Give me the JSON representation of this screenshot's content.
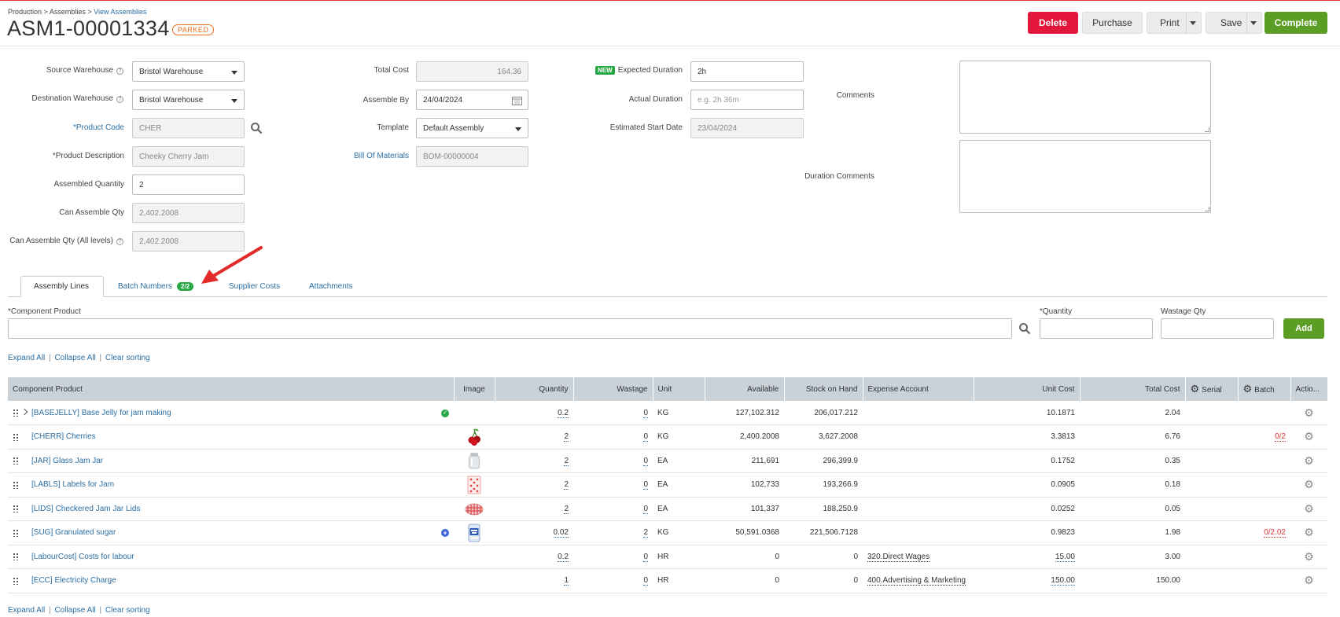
{
  "breadcrumb": {
    "production": "Production",
    "sep": ">",
    "assemblies": "Assemblies",
    "view": "View Assemblies"
  },
  "title": "ASM1-00001334",
  "status": "PARKED",
  "actions": {
    "delete": "Delete",
    "purchase": "Purchase",
    "print": "Print",
    "save": "Save",
    "complete": "Complete"
  },
  "form": {
    "source_warehouse_label": "Source Warehouse",
    "source_warehouse": "Bristol Warehouse",
    "destination_warehouse_label": "Destination Warehouse",
    "destination_warehouse": "Bristol Warehouse",
    "product_code_label": "*Product Code",
    "product_code": "CHER",
    "product_description_label": "*Product Description",
    "product_description": "Cheeky Cherry Jam",
    "assembled_quantity_label": "Assembled Quantity",
    "assembled_quantity": "2",
    "can_assemble_label": "Can Assemble Qty",
    "can_assemble": "2,402.2008",
    "can_assemble_all_label": "Can Assemble Qty (All levels)",
    "can_assemble_all": "2,402.2008",
    "total_cost_label": "Total Cost",
    "total_cost": "164.36",
    "assemble_by_label": "Assemble By",
    "assemble_by": "24/04/2024",
    "template_label": "Template",
    "template": "Default Assembly",
    "bom_label": "Bill Of Materials",
    "bom": "BOM-00000004",
    "new_badge": "NEW",
    "expected_duration_label": "Expected Duration",
    "expected_duration": "2h",
    "actual_duration_label": "Actual Duration",
    "actual_duration_placeholder": "e.g. 2h 36m",
    "est_start_label": "Estimated Start Date",
    "est_start": "23/04/2024",
    "comments_label": "Comments",
    "duration_comments_label": "Duration Comments"
  },
  "tabs": [
    {
      "label": "Assembly Lines"
    },
    {
      "label": "Batch Numbers",
      "badge": "2/2"
    },
    {
      "label": "Supplier Costs"
    },
    {
      "label": "Attachments"
    }
  ],
  "add_line": {
    "component_label": "*Component Product",
    "quantity_label": "*Quantity",
    "wastage_label": "Wastage Qty",
    "add": "Add"
  },
  "links": {
    "expand": "Expand All",
    "sep": "|",
    "collapse": "Collapse All",
    "clear": "Clear sorting"
  },
  "table": {
    "headers": {
      "component": "Component Product",
      "image": "Image",
      "quantity": "Quantity",
      "wastage": "Wastage",
      "unit": "Unit",
      "available": "Available",
      "stock": "Stock on Hand",
      "expense": "Expense Account",
      "unit_cost": "Unit Cost",
      "total_cost": "Total Cost",
      "serial": "Serial",
      "batch": "Batch",
      "actions": "Actio..."
    },
    "rows": [
      {
        "product": "[BASEJELLY] Base Jelly for jam making",
        "quantity": "0.2",
        "wastage": "0",
        "unit": "KG",
        "available": "127,102.312",
        "stock": "206,017.212",
        "expense": "",
        "unit_cost": "10.1871",
        "total_cost": "2.04",
        "batch": ""
      },
      {
        "product": "[CHERR] Cherries",
        "quantity": "2",
        "wastage": "0",
        "unit": "KG",
        "available": "2,400.2008",
        "stock": "3,627.2008",
        "expense": "",
        "unit_cost": "3.3813",
        "total_cost": "6.76",
        "batch": "0/2"
      },
      {
        "product": "[JAR] Glass Jam Jar",
        "quantity": "2",
        "wastage": "0",
        "unit": "EA",
        "available": "211,691",
        "stock": "296,399.9",
        "expense": "",
        "unit_cost": "0.1752",
        "total_cost": "0.35",
        "batch": ""
      },
      {
        "product": "[LABLS] Labels for Jam",
        "quantity": "2",
        "wastage": "0",
        "unit": "EA",
        "available": "102,733",
        "stock": "193,266.9",
        "expense": "",
        "unit_cost": "0.0905",
        "total_cost": "0.18",
        "batch": ""
      },
      {
        "product": "[LIDS] Checkered Jam Jar Lids",
        "quantity": "2",
        "wastage": "0",
        "unit": "EA",
        "available": "101,337",
        "stock": "188,250.9",
        "expense": "",
        "unit_cost": "0.0252",
        "total_cost": "0.05",
        "batch": ""
      },
      {
        "product": "[SUG] Granulated sugar",
        "quantity": "0.02",
        "wastage": "2",
        "unit": "KG",
        "available": "50,591.0368",
        "stock": "221,506.7128",
        "expense": "",
        "unit_cost": "0.9823",
        "total_cost": "1.98",
        "batch": "0/2.02"
      },
      {
        "product": "[LabourCost] Costs for labour",
        "quantity": "0.2",
        "wastage": "0",
        "unit": "HR",
        "available": "0",
        "stock": "0",
        "expense": "320.Direct Wages",
        "unit_cost": "15.00",
        "total_cost": "3.00",
        "batch": ""
      },
      {
        "product": "[ECC] Electricity Charge",
        "quantity": "1",
        "wastage": "0",
        "unit": "HR",
        "available": "0",
        "stock": "0",
        "expense": "400.Advertising & Marketing",
        "unit_cost": "150.00",
        "total_cost": "150.00",
        "batch": ""
      }
    ]
  },
  "colors": {
    "accent_green": "#5c9d25",
    "delete_red": "#e3163b",
    "parked_orange": "#e86f1d",
    "link_blue": "#2b6ea3",
    "annotation_arrow": "#e32b2b"
  }
}
